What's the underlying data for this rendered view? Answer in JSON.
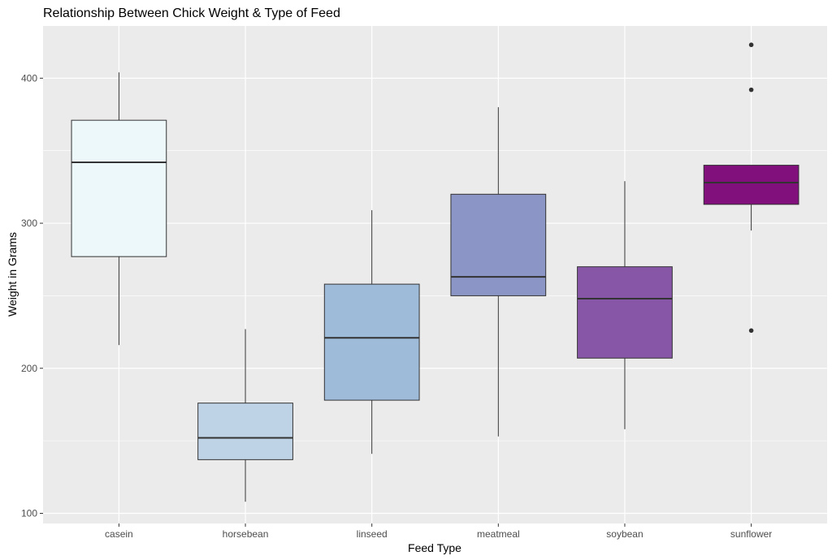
{
  "chart_data": {
    "type": "box",
    "title": "Relationship Between Chick Weight & Type of Feed",
    "xlabel": "Feed Type",
    "ylabel": "Weight in Grams",
    "ylim": [
      93,
      436
    ],
    "yticks": [
      100,
      200,
      300,
      400
    ],
    "grid": true,
    "legend": "none",
    "panel_color": "#ebebeb",
    "grid_color": "#ffffff",
    "categories": [
      "casein",
      "horsebean",
      "linseed",
      "meatmeal",
      "soybean",
      "sunflower"
    ],
    "boxes": [
      {
        "category": "casein",
        "min": 216,
        "q1": 277,
        "median": 342,
        "q3": 371,
        "max": 404,
        "outliers": [],
        "color": "#edf8fb"
      },
      {
        "category": "horsebean",
        "min": 108,
        "q1": 137,
        "median": 152,
        "q3": 176,
        "max": 227,
        "outliers": [],
        "color": "#bfd3e6"
      },
      {
        "category": "linseed",
        "min": 141,
        "q1": 178,
        "median": 221,
        "q3": 258,
        "max": 309,
        "outliers": [],
        "color": "#9ebcda"
      },
      {
        "category": "meatmeal",
        "min": 153,
        "q1": 250,
        "median": 263,
        "q3": 320,
        "max": 380,
        "outliers": [],
        "color": "#8c96c6"
      },
      {
        "category": "soybean",
        "min": 158,
        "q1": 207,
        "median": 248,
        "q3": 270,
        "max": 329,
        "outliers": [],
        "color": "#8856a7"
      },
      {
        "category": "sunflower",
        "min": 295,
        "q1": 313,
        "median": 328,
        "q3": 340,
        "max": 340,
        "outliers": [
          226,
          392,
          423
        ],
        "color": "#810f7c"
      }
    ]
  }
}
